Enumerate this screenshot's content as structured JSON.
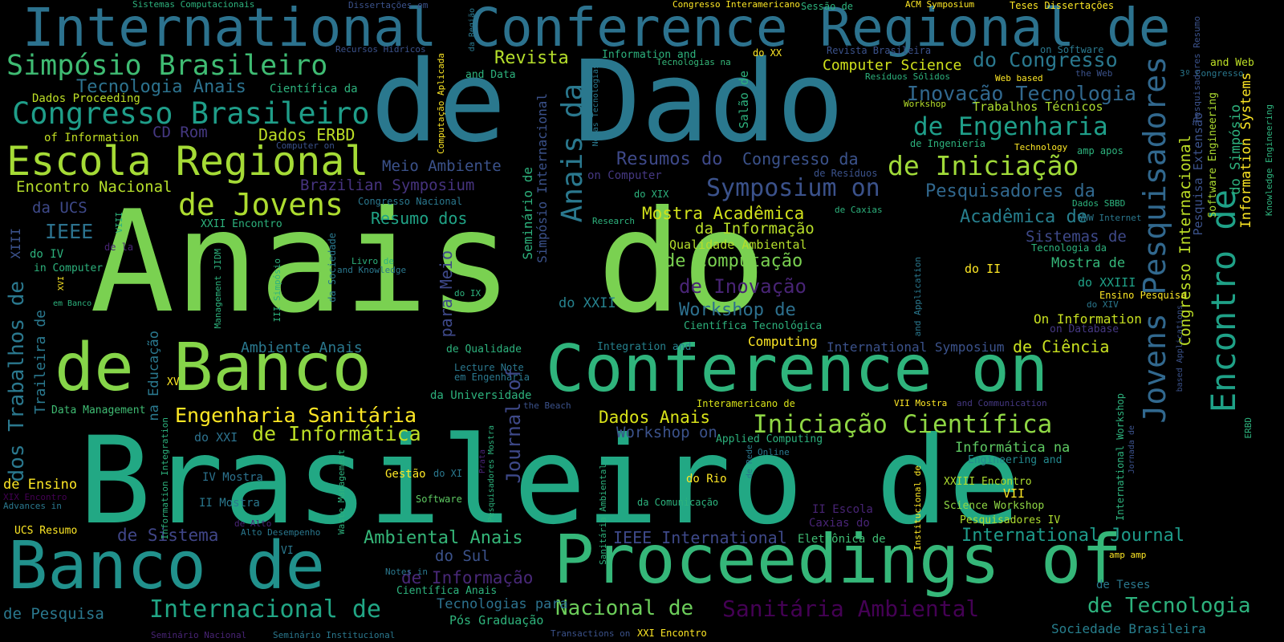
{
  "words": [
    {
      "text": "Brasileiro de",
      "color": "#22a884"
    },
    {
      "text": "Anais do",
      "color": "#7ad151"
    },
    {
      "text": "de Dado",
      "color": "#2a788e"
    },
    {
      "text": "International Conference Regional de",
      "color": "#2c728e"
    },
    {
      "text": "Proceedings of",
      "color": "#35b779"
    },
    {
      "text": "Conference on",
      "color": "#2fb47c"
    },
    {
      "text": "de Banco",
      "color": "#86d549"
    },
    {
      "text": "Banco de",
      "color": "#21918c"
    },
    {
      "text": "Escola Regional",
      "color": "#a5db36"
    },
    {
      "text": "Simpósio Brasileiro",
      "color": "#3fbc73"
    },
    {
      "text": "Congresso Brasileiro",
      "color": "#1f9e89"
    },
    {
      "text": "de Jovens",
      "color": "#addc30"
    },
    {
      "text": "Anais da",
      "color": "#2a788e"
    },
    {
      "text": "Jovens Pesquisadores",
      "color": "#31688e"
    },
    {
      "text": "Encontro de",
      "color": "#1fa187"
    },
    {
      "text": "de Engenharia",
      "color": "#1f9e89"
    },
    {
      "text": "de Iniciação",
      "color": "#a0da39"
    },
    {
      "text": "Symposium on",
      "color": "#3b528b"
    },
    {
      "text": "Inovação Tecnologia",
      "color": "#31688e"
    },
    {
      "text": "Iniciação Científica",
      "color": "#8fd744"
    },
    {
      "text": "Internacional de",
      "color": "#21a685"
    },
    {
      "text": "Engenharia Sanitária",
      "color": "#fde725"
    },
    {
      "text": "de Informática",
      "color": "#bddf26"
    },
    {
      "text": "dos Trabalhos de",
      "color": "#2a788e"
    },
    {
      "text": "Sanitária Ambiental",
      "color": "#440154"
    },
    {
      "text": "Nacional de",
      "color": "#6ccd5a"
    },
    {
      "text": "de Tecnologia",
      "color": "#2db27d"
    },
    {
      "text": "International Journal",
      "color": "#1e9b8a"
    },
    {
      "text": "Revista",
      "color": "#b5de2b"
    },
    {
      "text": "Computer Science",
      "color": "#d0e11c"
    },
    {
      "text": "do Congresso",
      "color": "#2a788e"
    },
    {
      "text": "Tecnologia Anais",
      "color": "#2c728e"
    },
    {
      "text": "Resumos do",
      "color": "#3e4989"
    },
    {
      "text": "Congresso da",
      "color": "#3b528b"
    },
    {
      "text": "Pesquisadores da",
      "color": "#31688e"
    },
    {
      "text": "Acadêmica de",
      "color": "#277f8e"
    },
    {
      "text": "Mostra Acadêmica",
      "color": "#d2e21b"
    },
    {
      "text": "da Informação",
      "color": "#b8de29"
    },
    {
      "text": "de Computação",
      "color": "#7ad151"
    },
    {
      "text": "de Inovação",
      "color": "#482475"
    },
    {
      "text": "Workshop de",
      "color": "#2d708e"
    },
    {
      "text": "Meio Ambiente",
      "color": "#3b528b"
    },
    {
      "text": "Brazilian Symposium",
      "color": "#46337e"
    },
    {
      "text": "Resumo dos",
      "color": "#20a386"
    },
    {
      "text": "Encontro Nacional",
      "color": "#b5de2b"
    },
    {
      "text": "Dados ERBD",
      "color": "#bddf26"
    },
    {
      "text": "Dados Proceeding",
      "color": "#bddf26"
    },
    {
      "text": "CD Rom",
      "color": "#453882"
    },
    {
      "text": "of Information",
      "color": "#c2df23"
    },
    {
      "text": "IEEE",
      "color": "#2c728e"
    },
    {
      "text": "da UCS",
      "color": "#3e4989"
    },
    {
      "text": "Ambiental Anais",
      "color": "#35b779"
    },
    {
      "text": "Workshop on",
      "color": "#3b528b"
    },
    {
      "text": "Dados Anais",
      "color": "#d8e219"
    },
    {
      "text": "Journal of",
      "color": "#3e4989"
    },
    {
      "text": "de Ensino",
      "color": "#fde725"
    },
    {
      "text": "de Sistema",
      "color": "#404688"
    },
    {
      "text": "de Informação",
      "color": "#482878"
    },
    {
      "text": "do Sul",
      "color": "#3b528b"
    },
    {
      "text": "IEEE International",
      "color": "#3e4989"
    },
    {
      "text": "de Pesquisa",
      "color": "#2a788e"
    },
    {
      "text": "Sistemas de",
      "color": "#3e4989"
    },
    {
      "text": "Mostra de",
      "color": "#35b779"
    },
    {
      "text": "do XXIII",
      "color": "#1fa187"
    },
    {
      "text": "On Information",
      "color": "#c8e020"
    },
    {
      "text": "de Ciência",
      "color": "#c8e020"
    },
    {
      "text": "International Symposium",
      "color": "#3b528b"
    },
    {
      "text": "Computing",
      "color": "#fde725"
    },
    {
      "text": "Ambiente Anais",
      "color": "#2a788e"
    },
    {
      "text": "do XXII",
      "color": "#26828e"
    },
    {
      "text": "Informática na",
      "color": "#5ec962"
    },
    {
      "text": "Engineering and",
      "color": "#23898e"
    },
    {
      "text": "XXIII Encontro",
      "color": "#addc30"
    },
    {
      "text": "Science Workshop",
      "color": "#8fd744"
    },
    {
      "text": "Pesquisadores IV",
      "color": "#addc30"
    },
    {
      "text": "de Teses",
      "color": "#2a788e"
    },
    {
      "text": "Sociedade Brasileira",
      "color": "#277f8e"
    },
    {
      "text": "Tecnologias para",
      "color": "#2c728e"
    },
    {
      "text": "Pós Graduação",
      "color": "#2fb47c"
    },
    {
      "text": "Trabalhos Técnicos",
      "color": "#addc30"
    },
    {
      "text": "Qualidade Ambiental",
      "color": "#b5de2b"
    },
    {
      "text": "Científica Tecnológica",
      "color": "#2db27d"
    },
    {
      "text": "Integration and",
      "color": "#26828e"
    },
    {
      "text": "Lecture Note",
      "color": "#2a788e"
    },
    {
      "text": "em Engenharia",
      "color": "#2a788e"
    },
    {
      "text": "da Universidade",
      "color": "#2db27d"
    },
    {
      "text": "Data Management",
      "color": "#3fbc73"
    },
    {
      "text": "do XXI",
      "color": "#2c728e"
    },
    {
      "text": "Gestão",
      "color": "#fde725"
    },
    {
      "text": "do XI",
      "color": "#2a788e"
    },
    {
      "text": "do Rio",
      "color": "#fde725"
    },
    {
      "text": "Software",
      "color": "#5ec962"
    },
    {
      "text": "IV Mostra",
      "color": "#2c728e"
    },
    {
      "text": "II Mostra",
      "color": "#2a788e"
    },
    {
      "text": "da Comunicação",
      "color": "#2db27d"
    },
    {
      "text": "II Escola",
      "color": "#482475"
    },
    {
      "text": "Caxias do",
      "color": "#482475"
    },
    {
      "text": "Eletrônica de",
      "color": "#3fbc73"
    },
    {
      "text": "VII",
      "color": "#fde725"
    },
    {
      "text": "VII Mostra",
      "color": "#fde725"
    },
    {
      "text": "and Communication",
      "color": "#453882"
    },
    {
      "text": "Interamericano de",
      "color": "#d8e219"
    },
    {
      "text": "Applied Computing",
      "color": "#2db27d"
    },
    {
      "text": "Online",
      "color": "#2a788e"
    },
    {
      "text": "the Beach",
      "color": "#3b528b"
    },
    {
      "text": "UCS Resumo",
      "color": "#fde725"
    },
    {
      "text": "Advances in",
      "color": "#2a788e"
    },
    {
      "text": "XIX Encontro",
      "color": "#440154"
    },
    {
      "text": "Alto Desempenho",
      "color": "#2a788e"
    },
    {
      "text": "de Alto",
      "color": "#482475"
    },
    {
      "text": "VI",
      "color": "#2a788e"
    },
    {
      "text": "Notes in",
      "color": "#2a788e"
    },
    {
      "text": "Científica Anais",
      "color": "#2db27d"
    },
    {
      "text": "Transactions on",
      "color": "#3b528b"
    },
    {
      "text": "XXI Encontro",
      "color": "#fde725"
    },
    {
      "text": "Seminário Nacional",
      "color": "#482475"
    },
    {
      "text": "Seminário Institucional",
      "color": "#2a788e"
    },
    {
      "text": "Sistemas Computacionais",
      "color": "#2db27d"
    },
    {
      "text": "Dissertações em",
      "color": "#3b528b"
    },
    {
      "text": "Congresso Interamericano",
      "color": "#fde725"
    },
    {
      "text": "Sessão de",
      "color": "#2db27d"
    },
    {
      "text": "ACM Symposium",
      "color": "#fde725"
    },
    {
      "text": "Teses Dissertações",
      "color": "#fde725"
    },
    {
      "text": "Recursos Hídricos",
      "color": "#3b528b"
    },
    {
      "text": "Information and",
      "color": "#2db27d"
    },
    {
      "text": "Tecnologias na",
      "color": "#35b779"
    },
    {
      "text": "do XX",
      "color": "#fde725"
    },
    {
      "text": "Revista Brasileira",
      "color": "#3b528b"
    },
    {
      "text": "on Software",
      "color": "#2a788e"
    },
    {
      "text": "and Web",
      "color": "#bddf26"
    },
    {
      "text": "and Data",
      "color": "#2db27d"
    },
    {
      "text": "Resíduos Sólidos",
      "color": "#2db27d"
    },
    {
      "text": "Web based",
      "color": "#fde725"
    },
    {
      "text": "the Web",
      "color": "#3b528b"
    },
    {
      "text": "3º Congresso",
      "color": "#2a788e"
    },
    {
      "text": "Científica da",
      "color": "#2db27d"
    },
    {
      "text": "Workshop",
      "color": "#b5de2b"
    },
    {
      "text": "Technology",
      "color": "#fde725"
    },
    {
      "text": "amp apos",
      "color": "#2db27d"
    },
    {
      "text": "de Ingeniería",
      "color": "#2db27d"
    },
    {
      "text": "Computer on",
      "color": "#3b528b"
    },
    {
      "text": "on Computer",
      "color": "#453882"
    },
    {
      "text": "de Resíduos",
      "color": "#3b528b"
    },
    {
      "text": "do XIX",
      "color": "#2db27d"
    },
    {
      "text": "Congresso Nacional",
      "color": "#2a788e"
    },
    {
      "text": "Dados SBBD",
      "color": "#2db27d"
    },
    {
      "text": "de Caxias",
      "color": "#2db27d"
    },
    {
      "text": "Research",
      "color": "#2db27d"
    },
    {
      "text": "WWW Internet",
      "color": "#2a788e"
    },
    {
      "text": "XXII Encontro",
      "color": "#2db27d"
    },
    {
      "text": "Livro de",
      "color": "#2db27d"
    },
    {
      "text": "and Knowledge",
      "color": "#2a788e"
    },
    {
      "text": "Tecnologia da",
      "color": "#2db27d"
    },
    {
      "text": "in Computer",
      "color": "#2db27d"
    },
    {
      "text": "do IV",
      "color": "#2db27d"
    },
    {
      "text": "de la",
      "color": "#482475"
    },
    {
      "text": "do II",
      "color": "#fde725"
    },
    {
      "text": "em Banco",
      "color": "#2db27d"
    },
    {
      "text": "do IX",
      "color": "#2db27d"
    },
    {
      "text": "XV",
      "color": "#fde725"
    },
    {
      "text": "Ensino Pesquisa",
      "color": "#fde725"
    },
    {
      "text": "do XIV",
      "color": "#2a788e"
    },
    {
      "text": "on Database",
      "color": "#453882"
    },
    {
      "text": "de Qualidade",
      "color": "#2db27d"
    },
    {
      "text": "amp amp",
      "color": "#fde725"
    },
    {
      "text": "Salão de",
      "color": "#2db27d"
    },
    {
      "text": "Seminário de",
      "color": "#2db27d"
    },
    {
      "text": "Simpósio Internacional",
      "color": "#3b528b"
    },
    {
      "text": "para Meio",
      "color": "#3e4989"
    },
    {
      "text": "Pesquisadores Resumo",
      "color": "#3b528b"
    },
    {
      "text": "Pesquisa Extensão",
      "color": "#3b528b"
    },
    {
      "text": "Software Engineering",
      "color": "#addc30"
    },
    {
      "text": "do Simpósio",
      "color": "#2db27d"
    },
    {
      "text": "Information Systems",
      "color": "#fde725"
    },
    {
      "text": "Knowledge Engineering",
      "color": "#2db27d"
    },
    {
      "text": "Congresso Internacional",
      "color": "#bddf26"
    },
    {
      "text": "Traileira de",
      "color": "#2a788e"
    },
    {
      "text": "na Educação",
      "color": "#2a788e"
    },
    {
      "text": "XIII",
      "color": "#3b528b"
    },
    {
      "text": "VIII",
      "color": "#2db27d"
    },
    {
      "text": "XVI",
      "color": "#fde725"
    },
    {
      "text": "Management JIDM",
      "color": "#2db27d"
    },
    {
      "text": "III Simpósio",
      "color": "#2db27d"
    },
    {
      "text": "da Sociedade",
      "color": "#2a788e"
    },
    {
      "text": "Information Integration",
      "color": "#2db27d"
    },
    {
      "text": "Waste Management",
      "color": "#2db27d"
    },
    {
      "text": "Sanitária Ambiental",
      "color": "#2db27d"
    },
    {
      "text": "Pesquisadores Mostra",
      "color": "#2db27d"
    },
    {
      "text": "Computação Aplicada",
      "color": "#fde725"
    },
    {
      "text": "Novas Tecnologias",
      "color": "#2a788e"
    },
    {
      "text": "da Região",
      "color": "#2a788e"
    },
    {
      "text": "International Workshop",
      "color": "#2db27d"
    },
    {
      "text": "Jornada de",
      "color": "#3b528b"
    },
    {
      "text": "Institucional de",
      "color": "#fde725"
    },
    {
      "text": "based Applications",
      "color": "#3b528b"
    },
    {
      "text": "ERBD",
      "color": "#2db27d"
    },
    {
      "text": "and Application",
      "color": "#2a788e"
    },
    {
      "text": "de Rede",
      "color": "#2a788e"
    },
    {
      "text": "Prata",
      "color": "#482475"
    }
  ]
}
